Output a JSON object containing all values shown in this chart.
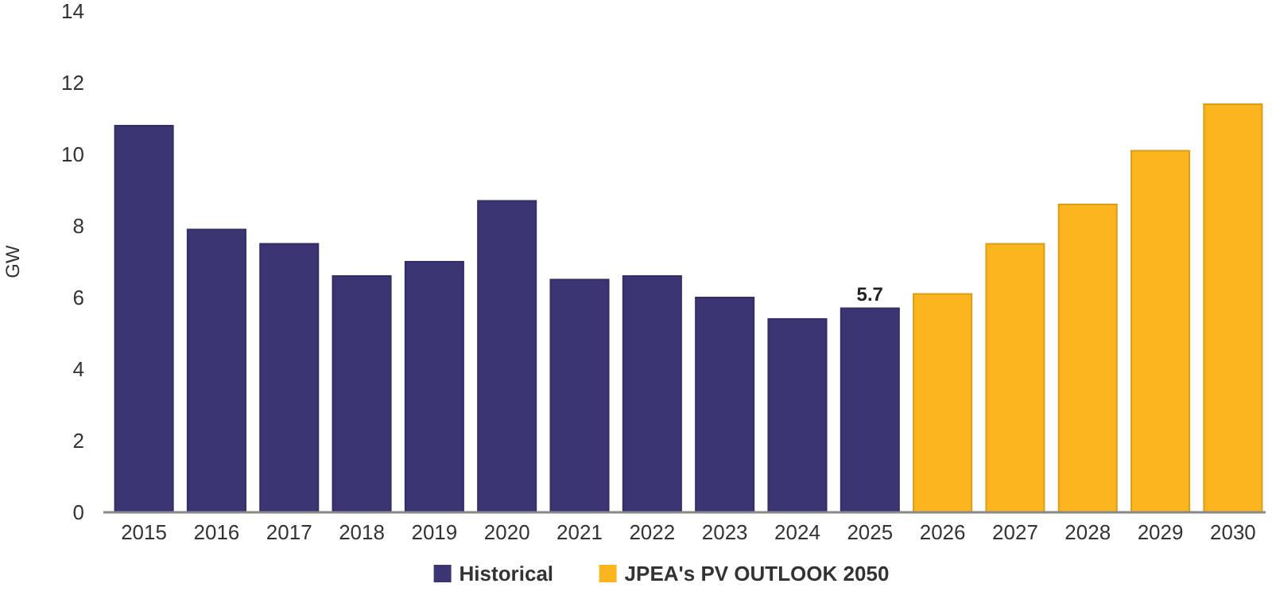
{
  "chart_data": {
    "type": "bar",
    "ylabel": "GW",
    "categories": [
      "2015",
      "2016",
      "2017",
      "2018",
      "2019",
      "2020",
      "2021",
      "2022",
      "2023",
      "2024",
      "2025",
      "2026",
      "2027",
      "2028",
      "2029",
      "2030"
    ],
    "series": [
      {
        "name": "Historical",
        "color": "#3b3573",
        "values": [
          10.8,
          7.9,
          7.5,
          6.6,
          7.0,
          8.7,
          6.5,
          6.6,
          6.0,
          5.4,
          5.7,
          null,
          null,
          null,
          null,
          null
        ],
        "value_labels": [
          null,
          null,
          null,
          null,
          null,
          null,
          null,
          null,
          null,
          null,
          "5.7",
          null,
          null,
          null,
          null,
          null
        ]
      },
      {
        "name": "JPEA's PV OUTLOOK 2050",
        "color": "#fbb61f",
        "values": [
          null,
          null,
          null,
          null,
          null,
          null,
          null,
          null,
          null,
          null,
          null,
          6.1,
          7.5,
          8.6,
          10.1,
          11.4
        ]
      }
    ],
    "ylim": [
      0,
      14
    ],
    "yticks": [
      0,
      2,
      4,
      6,
      8,
      10,
      12,
      14
    ],
    "grid": false,
    "legend": "bottom"
  }
}
